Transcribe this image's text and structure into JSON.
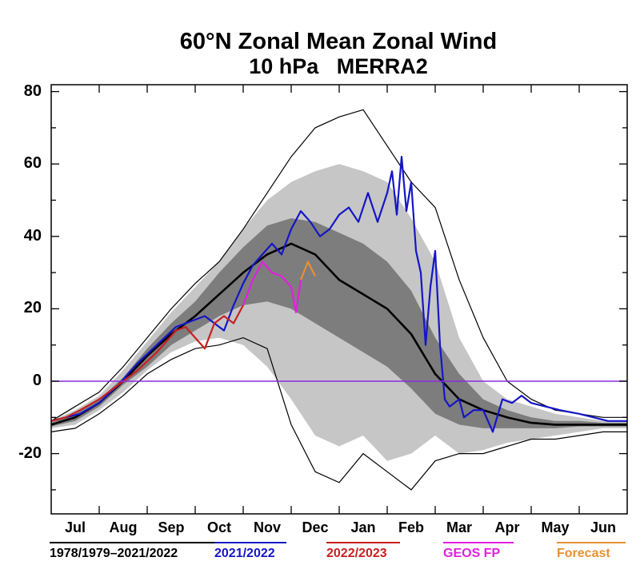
{
  "chart_data": {
    "type": "line",
    "title": "60°N Zonal Mean Zonal Wind",
    "subtitle": "10 hPa   MERRA2",
    "ylim": [
      -35,
      82
    ],
    "yticks": [
      80,
      60,
      40,
      20,
      0,
      -20
    ],
    "months": [
      "Jul",
      "Aug",
      "Sep",
      "Oct",
      "Nov",
      "Dec",
      "Jan",
      "Feb",
      "Mar",
      "Apr",
      "May",
      "Jun"
    ],
    "grid": false,
    "zero_line": 0,
    "legend_placement": "bottom",
    "series": [
      {
        "name": "1978/1979–2021/2022",
        "color": "#000000",
        "x": [
          0,
          0.5,
          1,
          1.5,
          2,
          2.5,
          3,
          3.5,
          4,
          4.5,
          5,
          5.5,
          6,
          6.5,
          7,
          7.5,
          8,
          8.5,
          9,
          9.5,
          10,
          10.5,
          11,
          11.5,
          12
        ],
        "mean": [
          -12,
          -10,
          -6,
          0,
          7,
          13,
          18,
          24,
          30,
          35,
          38,
          35,
          28,
          24,
          20,
          13,
          2,
          -5,
          -8,
          -10,
          -11.5,
          -12,
          -12,
          -12,
          -12
        ],
        "p15": [
          -12.5,
          -11,
          -7,
          -1,
          4,
          10,
          14,
          18,
          21,
          22,
          20,
          16,
          12,
          8,
          4,
          -2,
          -9,
          -12,
          -13,
          -13,
          -13,
          -13,
          -12.5,
          -12.5,
          -12.5
        ],
        "p85": [
          -11.5,
          -9,
          -5,
          1,
          9,
          16,
          22,
          30,
          37,
          43,
          45,
          44,
          41,
          38,
          33,
          25,
          12,
          2,
          -5,
          -8,
          -10,
          -11,
          -11,
          -11.5,
          -11.5
        ],
        "p02": [
          -13,
          -12,
          -8,
          -3,
          3,
          8,
          11,
          12,
          10,
          4,
          -5,
          -15,
          -18,
          -15,
          -22,
          -20,
          -15,
          -20,
          -19,
          -17,
          -16,
          -15,
          -14,
          -13,
          -13
        ],
        "p98": [
          -11,
          -8,
          -4,
          3,
          11,
          19,
          26,
          33,
          42,
          50,
          55,
          58,
          60,
          58,
          55,
          45,
          33,
          12,
          0,
          -5,
          -7,
          -9,
          -10,
          -11,
          -11
        ],
        "min": [
          -14,
          -13,
          -9,
          -4,
          2,
          6,
          9,
          10,
          12,
          9,
          -12,
          -25,
          -28,
          -20,
          -25,
          -30,
          -22,
          -20,
          -20,
          -18,
          -16,
          -16,
          -15,
          -14,
          -14
        ],
        "max": [
          -11,
          -7,
          -3,
          4,
          12,
          20,
          27,
          33,
          42,
          52,
          62,
          70,
          73,
          75,
          65,
          55,
          48,
          28,
          12,
          0,
          -5,
          -8,
          -9,
          -10,
          -10
        ]
      },
      {
        "name": "2021/2022",
        "color": "#1515c8",
        "x": [
          0,
          0.3,
          0.6,
          1,
          1.4,
          1.8,
          2.2,
          2.6,
          3,
          3.2,
          3.4,
          3.6,
          3.8,
          4,
          4.2,
          4.4,
          4.6,
          4.8,
          5,
          5.2,
          5.4,
          5.6,
          5.8,
          6,
          6.2,
          6.4,
          6.6,
          6.8,
          7,
          7.1,
          7.2,
          7.3,
          7.4,
          7.5,
          7.6,
          7.7,
          7.8,
          7.9,
          8,
          8.1,
          8.2,
          8.3,
          8.4,
          8.5,
          8.6,
          8.8,
          9,
          9.2,
          9.4,
          9.6,
          9.8,
          10,
          10.3,
          10.6,
          11,
          11.3,
          11.6,
          12
        ],
        "y": [
          -11,
          -10,
          -9,
          -6,
          -1,
          5,
          10,
          15,
          17,
          18,
          16,
          14,
          21,
          27,
          32,
          35,
          38,
          35,
          42,
          47,
          44,
          40,
          42,
          46,
          48,
          44,
          52,
          44,
          52,
          58,
          46,
          62,
          47,
          55,
          36,
          30,
          10,
          26,
          36,
          10,
          -5,
          -7,
          -6,
          -5,
          -10,
          -8,
          -8,
          -14,
          -5,
          -6,
          -4,
          -6,
          -7,
          -8,
          -9,
          -10,
          -11,
          -11
        ]
      },
      {
        "name": "2022/2023",
        "color": "#c82020",
        "x": [
          0,
          0.3,
          0.6,
          1,
          1.4,
          1.8,
          2.2,
          2.6,
          2.8,
          3,
          3.2,
          3.4,
          3.6,
          3.8,
          4
        ],
        "y": [
          -11,
          -10,
          -8,
          -5,
          -1,
          3,
          8,
          14,
          15,
          12,
          9,
          16,
          18,
          16,
          21
        ]
      },
      {
        "name": "GEOS FP",
        "color": "#e020e0",
        "x": [
          4,
          4.2,
          4.4,
          4.6,
          4.8,
          5,
          5.1,
          5.2
        ],
        "y": [
          21,
          28,
          33,
          30,
          29,
          26,
          19,
          28
        ]
      },
      {
        "name": "Forecast",
        "color": "#e89030",
        "x": [
          5.2,
          5.35,
          5.5
        ],
        "y": [
          28,
          33,
          29
        ]
      }
    ]
  },
  "legend_labels": [
    "1978/1979–2021/2022",
    "2021/2022",
    "2022/2023",
    "GEOS FP",
    "Forecast"
  ],
  "colors": {
    "outer_band": "#c6c6c6",
    "inner_band": "#7d7d7d",
    "zero_line": "#8a2be2"
  }
}
